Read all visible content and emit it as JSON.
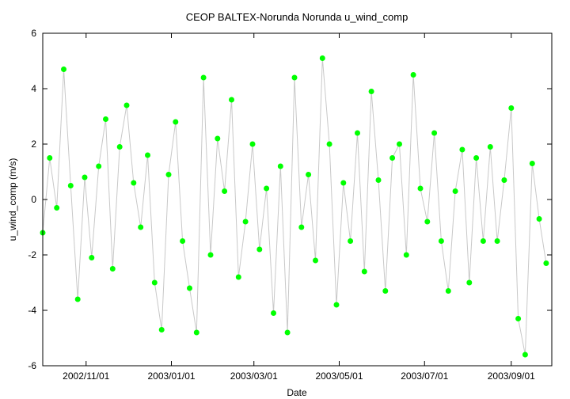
{
  "chart_data": {
    "type": "line",
    "title": "CEOP BALTEX-Norunda Norunda  u_wind_comp",
    "xlabel": "Date",
    "ylabel": "u_wind_comp (m/s)",
    "xlim": [
      "2002-10-01",
      "2003-09-30"
    ],
    "ylim": [
      -6,
      6
    ],
    "grid": false,
    "legend": "none",
    "line_color": "#c8c8c8",
    "marker_color": "#00ff00",
    "x_ticks": [
      {
        "date": "2002-11-01",
        "label": "2002/11/01"
      },
      {
        "date": "2003-01-01",
        "label": "2003/01/01"
      },
      {
        "date": "2003-03-01",
        "label": "2003/03/01"
      },
      {
        "date": "2003-05-01",
        "label": "2003/05/01"
      },
      {
        "date": "2003-07-01",
        "label": "2003/07/01"
      },
      {
        "date": "2003-09-01",
        "label": "2003/09/01"
      }
    ],
    "y_ticks": [
      -6,
      -4,
      -2,
      0,
      2,
      4,
      6
    ],
    "series": [
      {
        "x": [
          "2002-10-01",
          "2002-10-06",
          "2002-10-11",
          "2002-10-16",
          "2002-10-21",
          "2002-10-26",
          "2002-10-31",
          "2002-11-05",
          "2002-11-10",
          "2002-11-15",
          "2002-11-20",
          "2002-11-25",
          "2002-11-30",
          "2002-12-05",
          "2002-12-10",
          "2002-12-15",
          "2002-12-20",
          "2002-12-25",
          "2002-12-30",
          "2003-01-04",
          "2003-01-09",
          "2003-01-14",
          "2003-01-19",
          "2003-01-24",
          "2003-01-29",
          "2003-02-03",
          "2003-02-08",
          "2003-02-13",
          "2003-02-18",
          "2003-02-23",
          "2003-02-28",
          "2003-03-05",
          "2003-03-10",
          "2003-03-15",
          "2003-03-20",
          "2003-03-25",
          "2003-03-30",
          "2003-04-04",
          "2003-04-09",
          "2003-04-14",
          "2003-04-19",
          "2003-04-24",
          "2003-04-29",
          "2003-05-04",
          "2003-05-09",
          "2003-05-14",
          "2003-05-19",
          "2003-05-24",
          "2003-05-29",
          "2003-06-03",
          "2003-06-08",
          "2003-06-13",
          "2003-06-18",
          "2003-06-23",
          "2003-06-28",
          "2003-07-03",
          "2003-07-08",
          "2003-07-13",
          "2003-07-18",
          "2003-07-23",
          "2003-07-28",
          "2003-08-02",
          "2003-08-07",
          "2003-08-12",
          "2003-08-17",
          "2003-08-22",
          "2003-08-27",
          "2003-09-01",
          "2003-09-06",
          "2003-09-11",
          "2003-09-16",
          "2003-09-21",
          "2003-09-26"
        ],
        "y": [
          -1.2,
          1.5,
          -0.3,
          4.7,
          0.5,
          -3.6,
          0.8,
          -2.1,
          1.2,
          2.9,
          -2.5,
          1.9,
          3.4,
          0.6,
          -1.0,
          1.6,
          -3.0,
          -4.7,
          0.9,
          2.8,
          -1.5,
          -3.2,
          -4.8,
          4.4,
          -2.0,
          2.2,
          0.3,
          3.6,
          -2.8,
          -0.8,
          2.0,
          -1.8,
          0.4,
          -4.1,
          1.2,
          -4.8,
          4.4,
          -1.0,
          0.9,
          -2.2,
          5.1,
          2.0,
          -3.8,
          0.6,
          -1.5,
          2.4,
          -2.6,
          3.9,
          0.7,
          -3.3,
          1.5,
          2.0,
          -2.0,
          4.5,
          0.4,
          -0.8,
          2.4,
          -1.5,
          -3.3,
          0.3,
          1.8,
          -3.0,
          1.5,
          -1.5,
          1.9,
          -1.5,
          0.7,
          3.3,
          -4.3,
          -5.6,
          1.3,
          -0.7,
          -2.3
        ]
      }
    ]
  }
}
